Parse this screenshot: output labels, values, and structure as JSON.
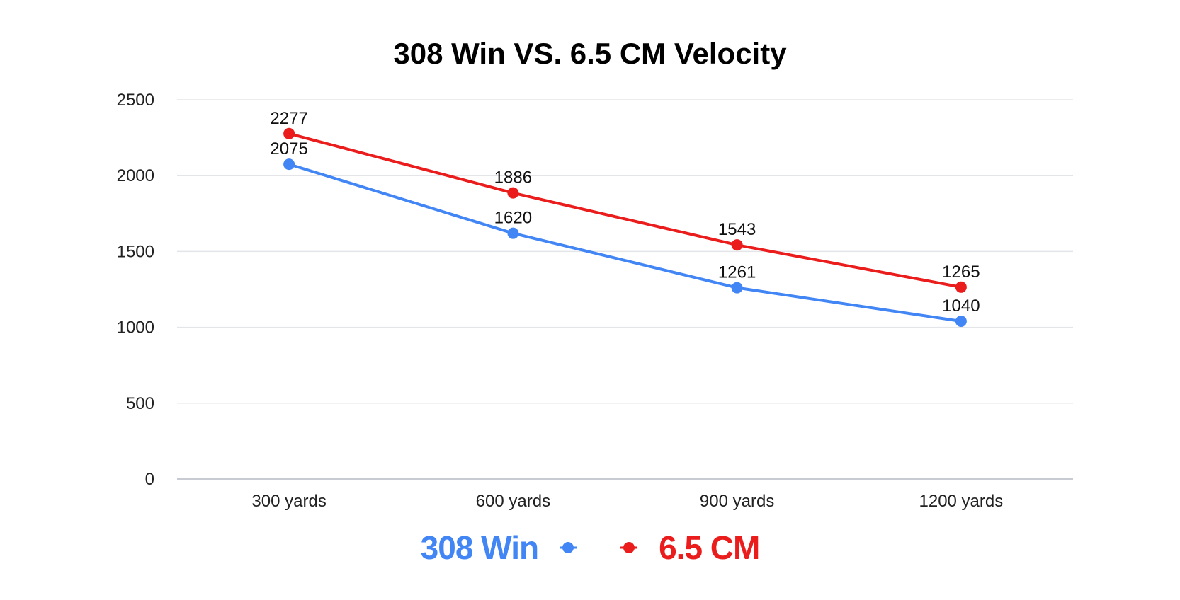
{
  "chart_data": {
    "type": "line",
    "title": "308 Win VS. 6.5 CM Velocity",
    "xlabel": "",
    "ylabel": "",
    "categories": [
      "300 yards",
      "600 yards",
      "900 yards",
      "1200 yards"
    ],
    "ylim": [
      0,
      2500
    ],
    "yticks": [
      0,
      500,
      1000,
      1500,
      2000,
      2500
    ],
    "grid": true,
    "legend_position": "bottom",
    "series": [
      {
        "name": "308 Win",
        "color": "#4285f4",
        "values": [
          2075,
          1620,
          1261,
          1040
        ]
      },
      {
        "name": "6.5 CM",
        "color": "#ea1c1c",
        "values": [
          2277,
          1886,
          1543,
          1265
        ]
      }
    ]
  }
}
